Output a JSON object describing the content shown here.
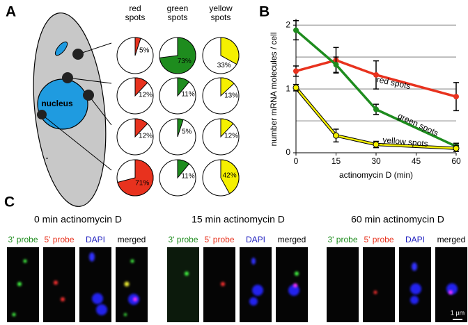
{
  "panel_labels": [
    "A",
    "B",
    "C"
  ],
  "diagram": {
    "nucleus": "nucleus"
  },
  "pie_columns": [
    "red spots",
    "green spots",
    "yellow spots"
  ],
  "chart_data": [
    {
      "type": "line",
      "xlabel": "actinomycin D (min)",
      "ylabel": "number mRNA molecules / cell",
      "x": [
        0,
        15,
        30,
        60
      ],
      "xlim": [
        0,
        60
      ],
      "xticks": [
        0,
        15,
        30,
        45,
        60
      ],
      "ylim": [
        0,
        2.1
      ],
      "yticks": [
        0,
        1,
        2
      ],
      "minor_grid": [
        0.5,
        1.5
      ],
      "grid": true,
      "series": [
        {
          "name": "red spots",
          "color": "#e8321e",
          "values": [
            1.28,
            1.45,
            1.22,
            0.88
          ],
          "errors": [
            0.08,
            0.2,
            0.22,
            0.22
          ]
        },
        {
          "name": "green spots",
          "color": "#1e8c1e",
          "values": [
            1.92,
            1.38,
            0.68,
            0.1
          ],
          "errors": [
            0.15,
            0.12,
            0.08,
            0.05
          ]
        },
        {
          "name": "yellow spots",
          "color": "#f5f000",
          "outline": "#000000",
          "values": [
            1.02,
            0.27,
            0.13,
            0.07
          ],
          "errors": [
            0.05,
            0.1,
            0.05,
            0.05
          ]
        }
      ]
    },
    {
      "type": "pie",
      "values": [
        5
      ],
      "value_labels": [
        "5%"
      ],
      "color": "#e8321e"
    },
    {
      "type": "pie",
      "values": [
        12
      ],
      "value_labels": [
        "12%"
      ],
      "color": "#e8321e"
    },
    {
      "type": "pie",
      "values": [
        12
      ],
      "value_labels": [
        "12%"
      ],
      "color": "#e8321e"
    },
    {
      "type": "pie",
      "values": [
        71
      ],
      "value_labels": [
        "71%"
      ],
      "color": "#e8321e"
    },
    {
      "type": "pie",
      "values": [
        73
      ],
      "value_labels": [
        "73%"
      ],
      "color": "#1e8c1e"
    },
    {
      "type": "pie",
      "values": [
        11
      ],
      "value_labels": [
        "11%"
      ],
      "color": "#1e8c1e"
    },
    {
      "type": "pie",
      "values": [
        5
      ],
      "value_labels": [
        "5%"
      ],
      "color": "#1e8c1e"
    },
    {
      "type": "pie",
      "values": [
        11
      ],
      "value_labels": [
        "11%"
      ],
      "color": "#1e8c1e"
    },
    {
      "type": "pie",
      "values": [
        33
      ],
      "value_labels": [
        "33%"
      ],
      "color": "#f5f000"
    },
    {
      "type": "pie",
      "values": [
        13
      ],
      "value_labels": [
        "13%"
      ],
      "color": "#f5f000"
    },
    {
      "type": "pie",
      "values": [
        12
      ],
      "value_labels": [
        "12%"
      ],
      "color": "#f5f000"
    },
    {
      "type": "pie",
      "values": [
        42
      ],
      "value_labels": [
        "42%"
      ],
      "color": "#f5f000"
    }
  ],
  "microscopy": {
    "panels": [
      {
        "title": "0 min actinomycin D"
      },
      {
        "title": "15 min actinomycin D"
      },
      {
        "title": "60 min actinomycin D"
      }
    ],
    "channels": [
      "3' probe",
      "5' probe",
      "DAPI",
      "merged"
    ],
    "channel_colors": [
      "#1e8c1e",
      "#e8321e",
      "#2020c0",
      "#000000"
    ],
    "scale_bar": "1 µm"
  }
}
